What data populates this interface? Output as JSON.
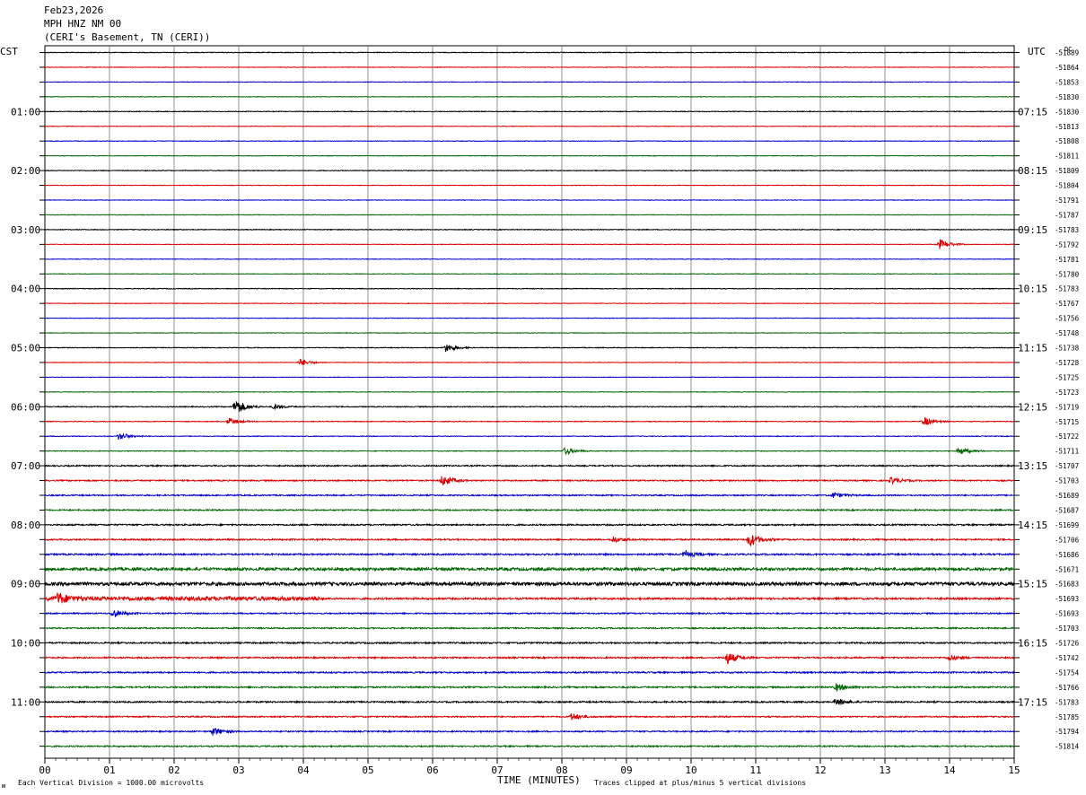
{
  "header": {
    "date": "Feb23,2026",
    "station": "MPH HNZ NM 00",
    "location": "(CERI's Basement, TN (CERI))"
  },
  "labels": {
    "left_tz": "CST",
    "right_tz": "UTC",
    "dc": "DC",
    "xaxis_title": "TIME (MINUTES)",
    "scale_note": "Each Vertical Division = 1000.00 microvolts",
    "clip_note": "Traces clipped at plus/minus 5 vertical divisions",
    "corner_mark": "ᴍ"
  },
  "chart_data": {
    "type": "line",
    "title": "",
    "xlabel": "TIME (MINUTES)",
    "xlim": [
      0,
      15
    ],
    "x_ticks": [
      "00",
      "01",
      "02",
      "03",
      "04",
      "05",
      "06",
      "07",
      "08",
      "09",
      "10",
      "11",
      "12",
      "13",
      "14",
      "15"
    ],
    "trace_colors": [
      "#000000",
      "#dd0000",
      "#0000cc",
      "#006600"
    ],
    "left_hour_labels": [
      "01:00",
      "02:00",
      "03:00",
      "04:00",
      "05:00",
      "06:00",
      "07:00",
      "08:00",
      "09:00",
      "10:00",
      "11:00"
    ],
    "right_hour_labels": [
      "07:15",
      "08:15",
      "09:15",
      "10:15",
      "11:15",
      "12:15",
      "13:15",
      "14:15",
      "15:15",
      "16:15",
      "17:15"
    ],
    "dc_offsets": [
      "-51889",
      "-51864",
      "-51853",
      "-51830",
      "-51830",
      "-51813",
      "-51808",
      "-51811",
      "-51809",
      "-51804",
      "-51791",
      "-51787",
      "-51783",
      "-51792",
      "-51781",
      "-51780",
      "-51783",
      "-51767",
      "-51756",
      "-51748",
      "-51738",
      "-51728",
      "-51725",
      "-51723",
      "-51719",
      "-51715",
      "-51722",
      "-51711",
      "-51707",
      "-51703",
      "-51689",
      "-51687",
      "-51699",
      "-51706",
      "-51686",
      "-51671",
      "-51683",
      "-51693",
      "-51693",
      "-51703",
      "-51726",
      "-51742",
      "-51754",
      "-51766",
      "-51783",
      "-51785",
      "-51794",
      "-51814"
    ],
    "noise_level": [
      0.4,
      0.3,
      0.3,
      0.3,
      0.4,
      0.3,
      0.3,
      0.3,
      0.4,
      0.3,
      0.3,
      0.3,
      0.4,
      0.3,
      0.3,
      0.3,
      0.4,
      0.3,
      0.3,
      0.3,
      0.4,
      0.3,
      0.3,
      0.3,
      0.5,
      0.4,
      0.4,
      0.4,
      0.7,
      0.7,
      0.7,
      0.7,
      0.8,
      0.8,
      0.9,
      1.5,
      1.8,
      1.0,
      0.7,
      0.7,
      0.8,
      0.8,
      0.8,
      0.8,
      0.8,
      0.7,
      0.7,
      0.7
    ],
    "events": [
      {
        "row": 13,
        "minute": 13.85,
        "amp": 1.2
      },
      {
        "row": 20,
        "minute": 6.2,
        "amp": 1.0
      },
      {
        "row": 21,
        "minute": 3.95,
        "amp": 0.8
      },
      {
        "row": 24,
        "minute": 2.95,
        "amp": 1.8
      },
      {
        "row": 24,
        "minute": 3.55,
        "amp": 0.6
      },
      {
        "row": 25,
        "minute": 2.85,
        "amp": 0.8
      },
      {
        "row": 25,
        "minute": 13.6,
        "amp": 1.0
      },
      {
        "row": 26,
        "minute": 1.15,
        "amp": 0.9
      },
      {
        "row": 27,
        "minute": 8.05,
        "amp": 0.8
      },
      {
        "row": 27,
        "minute": 14.15,
        "amp": 0.9
      },
      {
        "row": 29,
        "minute": 6.15,
        "amp": 1.2
      },
      {
        "row": 29,
        "minute": 13.1,
        "amp": 0.7
      },
      {
        "row": 30,
        "minute": 12.2,
        "amp": 0.6
      },
      {
        "row": 33,
        "minute": 10.9,
        "amp": 1.6
      },
      {
        "row": 33,
        "minute": 8.8,
        "amp": 0.6
      },
      {
        "row": 34,
        "minute": 9.9,
        "amp": 0.7
      },
      {
        "row": 37,
        "minute": 0.2,
        "amp": 1.2
      },
      {
        "row": 38,
        "minute": 1.05,
        "amp": 0.9
      },
      {
        "row": 41,
        "minute": 10.55,
        "amp": 1.5
      },
      {
        "row": 41,
        "minute": 14.0,
        "amp": 0.6
      },
      {
        "row": 43,
        "minute": 12.25,
        "amp": 0.8
      },
      {
        "row": 44,
        "minute": 12.25,
        "amp": 0.8
      },
      {
        "row": 45,
        "minute": 8.15,
        "amp": 0.8
      },
      {
        "row": 46,
        "minute": 2.6,
        "amp": 0.9
      }
    ],
    "segments": [
      {
        "row": 35,
        "from": 2.0,
        "to": 15.0,
        "amp": 1.4
      },
      {
        "row": 36,
        "from": 0.0,
        "to": 15.0,
        "amp": 1.3
      },
      {
        "row": 37,
        "from": 0.0,
        "to": 4.3,
        "amp": 2.2
      }
    ]
  }
}
